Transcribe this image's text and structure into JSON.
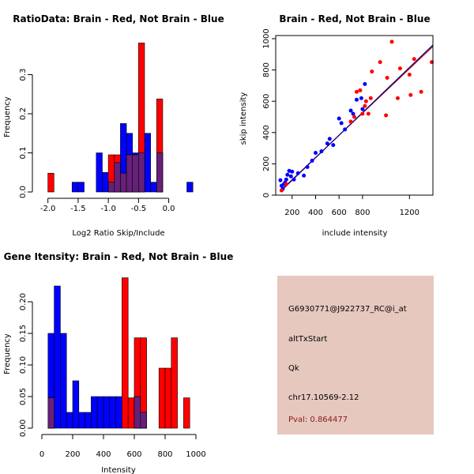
{
  "colors": {
    "red": "#ff0000",
    "blue": "#0000ff",
    "overlap": "#66207a",
    "line_red": "#cc0000",
    "line_blue": "#00008b",
    "panel": "#e6c8bf",
    "pval": "#8b1a1a"
  },
  "chart_data": [
    {
      "type": "bar",
      "title": "RatioData: Brain - Red, Not Brain - Blue",
      "xlabel": "Log2 Ratio Skip/Include",
      "ylabel": "Frequency",
      "xlim": [
        -2.1,
        0.45
      ],
      "ylim": [
        0,
        0.4
      ],
      "bin_width": 0.1,
      "xticks": [
        -2.0,
        -1.5,
        -1.0,
        -0.5,
        0.0
      ],
      "xtick_labels": [
        "-2.0",
        "-1.5",
        "-1.0",
        "-0.5",
        "0.0"
      ],
      "yticks": [
        0,
        0.1,
        0.2,
        0.3
      ],
      "ytick_labels": [
        "0.0",
        "0.1",
        "0.2",
        "0.3"
      ],
      "series": [
        {
          "name": "Not Brain",
          "color": "blue",
          "bins": [
            [
              -1.6,
              0.025
            ],
            [
              -1.5,
              0.025
            ],
            [
              -1.2,
              0.1
            ],
            [
              -1.1,
              0.05
            ],
            [
              -1.0,
              0.025
            ],
            [
              -0.9,
              0.075
            ],
            [
              -0.8,
              0.175
            ],
            [
              -0.7,
              0.15
            ],
            [
              -0.6,
              0.1
            ],
            [
              -0.5,
              0.1
            ],
            [
              -0.4,
              0.15
            ],
            [
              -0.3,
              0.025
            ],
            [
              -0.2,
              0.1
            ],
            [
              0.3,
              0.025
            ]
          ]
        },
        {
          "name": "Brain",
          "color": "red",
          "bins": [
            [
              -2.0,
              0.048
            ],
            [
              -1.0,
              0.095
            ],
            [
              -0.9,
              0.095
            ],
            [
              -0.8,
              0.048
            ],
            [
              -0.7,
              0.095
            ],
            [
              -0.6,
              0.095
            ],
            [
              -0.5,
              0.381
            ],
            [
              -0.2,
              0.238
            ]
          ]
        }
      ]
    },
    {
      "type": "scatter",
      "title": "Brain - Red, Not Brain - Blue",
      "xlabel": "include intensity",
      "ylabel": "skip intensity",
      "xlim": [
        60,
        1400
      ],
      "ylim": [
        0,
        1020
      ],
      "xticks": [
        200,
        400,
        600,
        800,
        1200
      ],
      "xtick_labels": [
        "200",
        "400",
        "600",
        "800",
        "1200"
      ],
      "yticks": [
        0,
        200,
        400,
        600,
        800,
        1000
      ],
      "ytick_labels": [
        "0",
        "200",
        "400",
        "600",
        "800",
        "1000"
      ],
      "series": [
        {
          "name": "Not Brain",
          "color": "blue",
          "points": [
            [
              100,
              95
            ],
            [
              110,
              60
            ],
            [
              120,
              40
            ],
            [
              130,
              70
            ],
            [
              140,
              80
            ],
            [
              150,
              100
            ],
            [
              160,
              130
            ],
            [
              175,
              155
            ],
            [
              190,
              120
            ],
            [
              200,
              150
            ],
            [
              215,
              100
            ],
            [
              250,
              140
            ],
            [
              300,
              125
            ],
            [
              330,
              180
            ],
            [
              370,
              220
            ],
            [
              400,
              270
            ],
            [
              450,
              280
            ],
            [
              500,
              330
            ],
            [
              520,
              360
            ],
            [
              550,
              320
            ],
            [
              600,
              490
            ],
            [
              620,
              460
            ],
            [
              650,
              420
            ],
            [
              700,
              540
            ],
            [
              720,
              520
            ],
            [
              750,
              610
            ],
            [
              790,
              620
            ],
            [
              800,
              550
            ],
            [
              820,
              710
            ]
          ]
        },
        {
          "name": "Brain",
          "color": "red",
          "points": [
            [
              110,
              30
            ],
            [
              150,
              70
            ],
            [
              700,
              470
            ],
            [
              730,
              500
            ],
            [
              750,
              660
            ],
            [
              780,
              670
            ],
            [
              800,
              520
            ],
            [
              820,
              570
            ],
            [
              830,
              600
            ],
            [
              850,
              520
            ],
            [
              870,
              620
            ],
            [
              880,
              790
            ],
            [
              950,
              850
            ],
            [
              1000,
              510
            ],
            [
              1010,
              750
            ],
            [
              1050,
              980
            ],
            [
              1100,
              620
            ],
            [
              1120,
              810
            ],
            [
              1200,
              770
            ],
            [
              1210,
              640
            ],
            [
              1240,
              870
            ],
            [
              1300,
              660
            ],
            [
              1390,
              850
            ]
          ]
        }
      ],
      "fit_lines": [
        {
          "color": "line_red",
          "from": [
            110,
            35
          ],
          "to": [
            1400,
            950
          ]
        },
        {
          "color": "line_blue",
          "from": [
            110,
            30
          ],
          "to": [
            1400,
            960
          ]
        }
      ]
    },
    {
      "type": "bar",
      "title": "Gene Itensity: Brain - Red, Not Brain - Blue",
      "xlabel": "Intensity",
      "ylabel": "Frequency",
      "xlim": [
        0,
        1000
      ],
      "ylim": [
        0,
        0.24
      ],
      "bin_width": 40,
      "xticks": [
        0,
        200,
        400,
        600,
        800,
        1000
      ],
      "xtick_labels": [
        "0",
        "200",
        "400",
        "600",
        "800",
        "1000"
      ],
      "yticks": [
        0,
        0.05,
        0.1,
        0.15,
        0.2
      ],
      "ytick_labels": [
        "0.00",
        "0.05",
        "0.10",
        "0.15",
        "0.20"
      ],
      "series": [
        {
          "name": "Not Brain",
          "color": "blue",
          "bins": [
            [
              40,
              0.15
            ],
            [
              80,
              0.225
            ],
            [
              120,
              0.15
            ],
            [
              160,
              0.025
            ],
            [
              200,
              0.075
            ],
            [
              240,
              0.025
            ],
            [
              280,
              0.025
            ],
            [
              320,
              0.05
            ],
            [
              360,
              0.05
            ],
            [
              400,
              0.05
            ],
            [
              440,
              0.05
            ],
            [
              480,
              0.05
            ],
            [
              600,
              0.05
            ],
            [
              640,
              0.025
            ]
          ]
        },
        {
          "name": "Brain",
          "color": "red",
          "bins": [
            [
              40,
              0.048
            ],
            [
              520,
              0.238
            ],
            [
              560,
              0.048
            ],
            [
              600,
              0.143
            ],
            [
              640,
              0.143
            ],
            [
              760,
              0.095
            ],
            [
              800,
              0.095
            ],
            [
              840,
              0.143
            ],
            [
              920,
              0.048
            ]
          ]
        }
      ]
    }
  ],
  "info_panel": {
    "line1": "G6930771@J922737_RC@i_at",
    "line2": "altTxStart",
    "line3": "Qk",
    "line4": "chr17.10569-2.12",
    "pval": "Pval: 0.864477"
  }
}
